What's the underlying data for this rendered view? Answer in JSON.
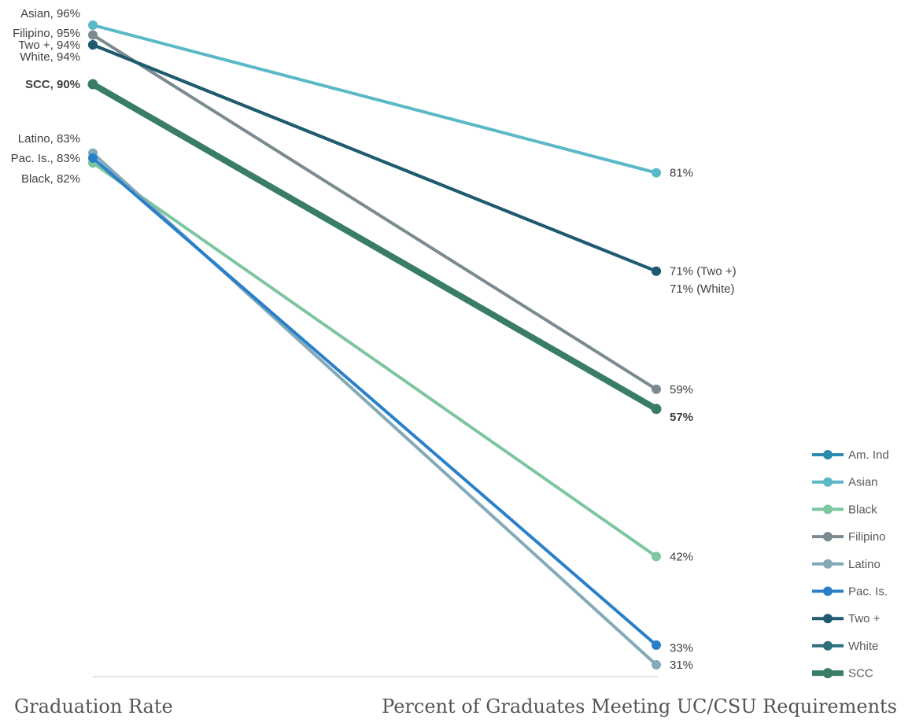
{
  "chart_data": {
    "type": "line",
    "categories": [
      "Graduation Rate",
      "Percent of Graduates Meeting UC/CSU Requirements"
    ],
    "ylim": [
      28,
      100
    ],
    "grid": false,
    "legend_position": "right",
    "series": [
      {
        "name": "Am. Ind",
        "values": [
          null,
          null
        ],
        "color": "#2e8bb0",
        "width": 4,
        "bold": false
      },
      {
        "name": "Asian",
        "values": [
          96,
          81
        ],
        "color": "#5ab8c7",
        "width": 4,
        "bold": false
      },
      {
        "name": "Black",
        "values": [
          82,
          42
        ],
        "color": "#7cc6a0",
        "width": 4,
        "bold": false
      },
      {
        "name": "Filipino",
        "values": [
          95,
          59
        ],
        "color": "#7a8a8f",
        "width": 4,
        "bold": false
      },
      {
        "name": "Latino",
        "values": [
          83,
          31
        ],
        "color": "#84aab8",
        "width": 4,
        "bold": false
      },
      {
        "name": "Pac. Is.",
        "values": [
          82.5,
          33
        ],
        "color": "#2a80c8",
        "width": 4,
        "bold": false
      },
      {
        "name": "Two +",
        "values": [
          94,
          71
        ],
        "color": "#1f5a70",
        "width": 4,
        "bold": false
      },
      {
        "name": "White",
        "values": [
          94,
          71
        ],
        "color": "#2e6f7e",
        "width": 4,
        "bold": false
      },
      {
        "name": "SCC",
        "values": [
          90,
          57
        ],
        "color": "#3a7d66",
        "width": 8,
        "bold": true
      }
    ],
    "left_labels": [
      {
        "text": "Asian, 96%",
        "bold": false,
        "y": 97.2
      },
      {
        "text": "Filipino, 95%",
        "bold": false,
        "y": 95.2
      },
      {
        "text": "Two +, 94%",
        "bold": false,
        "y": 94.0
      },
      {
        "text": "White, 94%",
        "bold": false,
        "y": 92.8
      },
      {
        "text": "SCC, 90%",
        "bold": true,
        "y": 90.0
      },
      {
        "text": "Latino, 83%",
        "bold": false,
        "y": 84.5
      },
      {
        "text": "Pac. Is., 83%",
        "bold": false,
        "y": 82.5
      },
      {
        "text": "Black, 82%",
        "bold": false,
        "y": 80.4
      }
    ],
    "right_labels": [
      {
        "text": "81%",
        "bold": false,
        "y": 81
      },
      {
        "text": "71% (Two +)",
        "bold": false,
        "y": 71
      },
      {
        "text": "71% (White)",
        "bold": false,
        "y": 69.2
      },
      {
        "text": "59%",
        "bold": false,
        "y": 59
      },
      {
        "text": "57%",
        "bold": true,
        "y": 56.2
      },
      {
        "text": "42%",
        "bold": false,
        "y": 42
      },
      {
        "text": "33%",
        "bold": false,
        "y": 32.7
      },
      {
        "text": "31%",
        "bold": false,
        "y": 31
      }
    ]
  }
}
